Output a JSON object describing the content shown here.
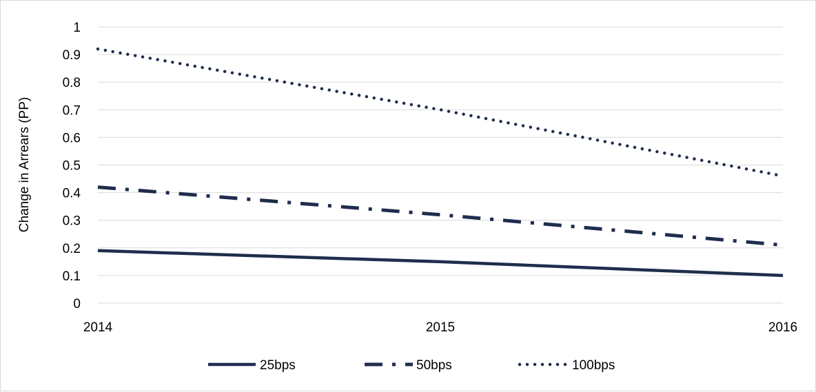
{
  "chart_data": {
    "type": "line",
    "title": "",
    "xlabel": "",
    "ylabel": "Change in Arrears (PP)",
    "x": [
      2014,
      2015,
      2016
    ],
    "x_tick_labels": [
      "2014",
      "2015",
      "2016"
    ],
    "ylim": [
      0,
      1
    ],
    "y_ticks": [
      0,
      0.1,
      0.2,
      0.3,
      0.4,
      0.5,
      0.6,
      0.7,
      0.8,
      0.9,
      1
    ],
    "y_tick_labels": [
      "0",
      "0.1",
      "0.2",
      "0.3",
      "0.4",
      "0.5",
      "0.6",
      "0.7",
      "0.8",
      "0.9",
      "1"
    ],
    "grid": "horizontal",
    "legend_position": "bottom",
    "series": [
      {
        "name": "25bps",
        "values": [
          0.19,
          0.15,
          0.1
        ],
        "color": "#1f2d4d",
        "style": "solid"
      },
      {
        "name": "50bps",
        "values": [
          0.42,
          0.32,
          0.21
        ],
        "color": "#1f2d4d",
        "style": "dash-dot"
      },
      {
        "name": "100bps",
        "values": [
          0.92,
          0.7,
          0.46
        ],
        "color": "#1f2d4d",
        "style": "dotted"
      }
    ]
  }
}
